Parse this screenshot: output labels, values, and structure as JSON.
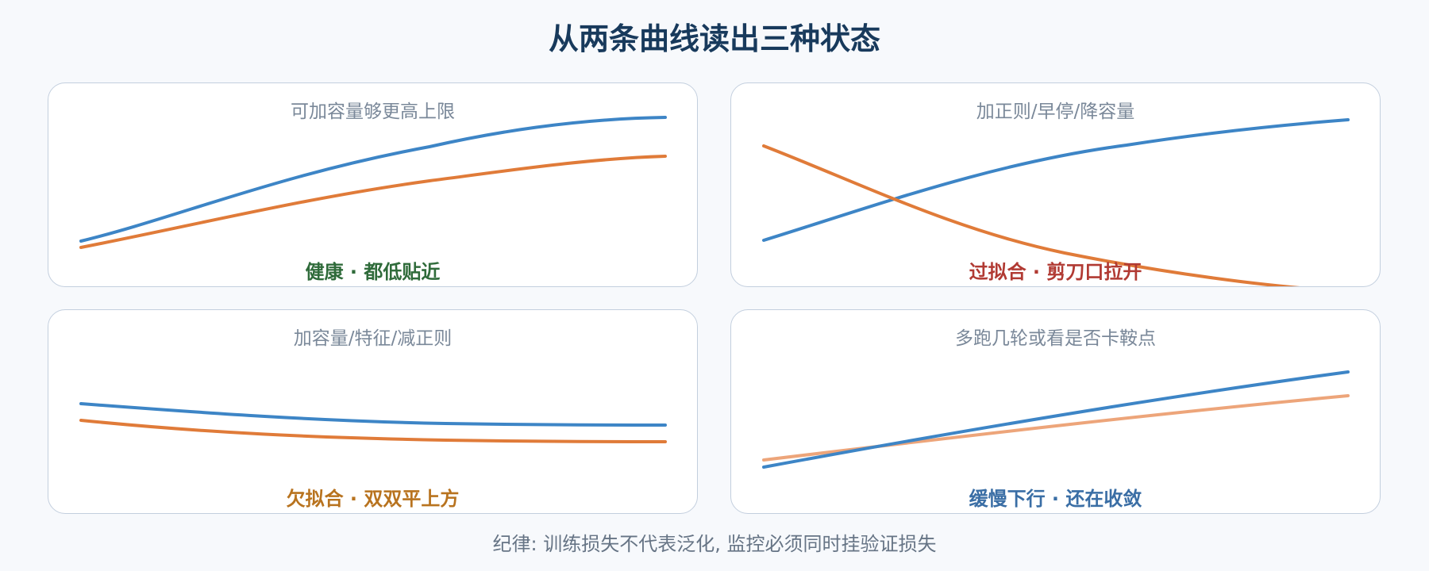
{
  "title": "从两条曲线读出三种状态",
  "colors": {
    "train": "#3d85c6",
    "validation": "#e07b39",
    "validation_light": "#eda57a",
    "healthy": "#2f6b3a",
    "overfit": "#b13a33",
    "underfit": "#b8731f",
    "converging": "#3a6ea5"
  },
  "panels": [
    {
      "subtitle": "可加容量够更高上限",
      "verdict": "健康 · 都低贴近",
      "verdict_color": "#2f6b3a"
    },
    {
      "subtitle": "加正则/早停/降容量",
      "verdict": "过拟合 · 剪刀口拉开",
      "verdict_color": "#b13a33"
    },
    {
      "subtitle": "加容量/特征/减正则",
      "verdict": "欠拟合 · 双双平上方",
      "verdict_color": "#b8731f"
    },
    {
      "subtitle": "多跑几轮或看是否卡鞍点",
      "verdict": "缓慢下行 · 还在收敛",
      "verdict_color": "#3a6ea5"
    }
  ],
  "footer": "纪律: 训练损失不代表泛化, 监控必须同时挂验证损失"
}
